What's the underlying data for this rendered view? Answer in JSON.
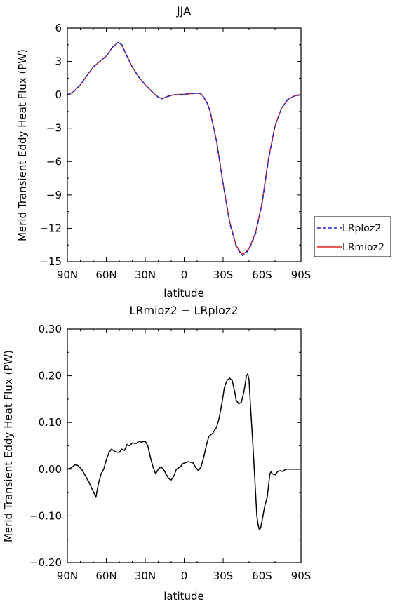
{
  "chart_data": [
    {
      "type": "line",
      "title": "JJA",
      "xlabel": "latitude",
      "ylabel": "Merid Transient Eddy Heat Flux (PW)",
      "xlim": [
        -90,
        90
      ],
      "ylim": [
        -15,
        6
      ],
      "x_direction": "90N on left to 90S on right",
      "xticks": [
        {
          "value": -90,
          "label": "90N"
        },
        {
          "value": -60,
          "label": "60N"
        },
        {
          "value": -30,
          "label": "30N"
        },
        {
          "value": 0,
          "label": "0"
        },
        {
          "value": 30,
          "label": "30S"
        },
        {
          "value": 60,
          "label": "60S"
        },
        {
          "value": 90,
          "label": "90S"
        }
      ],
      "yticks": [
        {
          "value": 6,
          "label": "6"
        },
        {
          "value": 3,
          "label": "3"
        },
        {
          "value": 0,
          "label": "0"
        },
        {
          "value": -3,
          "label": "−3"
        },
        {
          "value": -6,
          "label": "−6"
        },
        {
          "value": -9,
          "label": "−9"
        },
        {
          "value": -12,
          "label": "−12"
        },
        {
          "value": -15,
          "label": "−15"
        }
      ],
      "legend_placement": "right of plot, bottom",
      "series": [
        {
          "name": "LRploz2",
          "color": "#2222cc",
          "dash": "dashed",
          "points": [
            [
              -90,
              0
            ],
            [
              -85,
              0.3
            ],
            [
              -80,
              0.9
            ],
            [
              -75,
              1.7
            ],
            [
              -70,
              2.5
            ],
            [
              -65,
              3.0
            ],
            [
              -60,
              3.5
            ],
            [
              -55,
              4.3
            ],
            [
              -51,
              4.7
            ],
            [
              -48,
              4.5
            ],
            [
              -45,
              3.7
            ],
            [
              -40,
              2.5
            ],
            [
              -35,
              1.6
            ],
            [
              -30,
              0.9
            ],
            [
              -25,
              0.3
            ],
            [
              -20,
              -0.2
            ],
            [
              -17,
              -0.35
            ],
            [
              -13,
              -0.15
            ],
            [
              -8,
              0
            ],
            [
              0,
              0.05
            ],
            [
              5,
              0.1
            ],
            [
              10,
              0.15
            ],
            [
              13,
              0.1
            ],
            [
              15,
              -0.2
            ],
            [
              18,
              -0.8
            ],
            [
              20,
              -1.5
            ],
            [
              25,
              -4.2
            ],
            [
              30,
              -8.0
            ],
            [
              35,
              -11.5
            ],
            [
              40,
              -13.6
            ],
            [
              43,
              -14.2
            ],
            [
              45,
              -14.45
            ],
            [
              47,
              -14.3
            ],
            [
              50,
              -13.9
            ],
            [
              55,
              -12.5
            ],
            [
              60,
              -9.8
            ],
            [
              65,
              -5.8
            ],
            [
              70,
              -2.8
            ],
            [
              75,
              -1.2
            ],
            [
              80,
              -0.4
            ],
            [
              85,
              -0.1
            ],
            [
              90,
              0
            ]
          ]
        },
        {
          "name": "LRmioz2",
          "color": "#dd2222",
          "dash": "solid",
          "points": [
            [
              -90,
              0
            ],
            [
              -85,
              0.3
            ],
            [
              -80,
              0.9
            ],
            [
              -75,
              1.7
            ],
            [
              -70,
              2.5
            ],
            [
              -65,
              3.0
            ],
            [
              -60,
              3.5
            ],
            [
              -55,
              4.3
            ],
            [
              -51,
              4.7
            ],
            [
              -48,
              4.5
            ],
            [
              -45,
              3.7
            ],
            [
              -40,
              2.5
            ],
            [
              -35,
              1.6
            ],
            [
              -30,
              0.9
            ],
            [
              -25,
              0.3
            ],
            [
              -20,
              -0.2
            ],
            [
              -17,
              -0.35
            ],
            [
              -13,
              -0.15
            ],
            [
              -8,
              0
            ],
            [
              0,
              0.05
            ],
            [
              5,
              0.1
            ],
            [
              10,
              0.15
            ],
            [
              13,
              0.1
            ],
            [
              15,
              -0.2
            ],
            [
              18,
              -0.8
            ],
            [
              20,
              -1.5
            ],
            [
              25,
              -4.2
            ],
            [
              30,
              -8.0
            ],
            [
              35,
              -11.4
            ],
            [
              40,
              -13.5
            ],
            [
              43,
              -14.1
            ],
            [
              45,
              -14.3
            ],
            [
              47,
              -14.2
            ],
            [
              50,
              -13.8
            ],
            [
              55,
              -12.4
            ],
            [
              60,
              -9.7
            ],
            [
              65,
              -5.7
            ],
            [
              70,
              -2.8
            ],
            [
              75,
              -1.2
            ],
            [
              80,
              -0.4
            ],
            [
              85,
              -0.1
            ],
            [
              90,
              0
            ]
          ]
        }
      ]
    },
    {
      "type": "line",
      "title": "LRmioz2 − LRploz2",
      "xlabel": "latitude",
      "ylabel": "Merid Transient Eddy Heat Flux (PW)",
      "xlim": [
        -90,
        90
      ],
      "ylim": [
        -0.2,
        0.3
      ],
      "x_direction": "90N on left to 90S on right",
      "xticks": [
        {
          "value": -90,
          "label": "90N"
        },
        {
          "value": -60,
          "label": "60N"
        },
        {
          "value": -30,
          "label": "30N"
        },
        {
          "value": 0,
          "label": "0"
        },
        {
          "value": 30,
          "label": "30S"
        },
        {
          "value": 60,
          "label": "60S"
        },
        {
          "value": 90,
          "label": "90S"
        }
      ],
      "yticks": [
        {
          "value": 0.3,
          "label": "0.30"
        },
        {
          "value": 0.2,
          "label": "0.20"
        },
        {
          "value": 0.1,
          "label": "0.10"
        },
        {
          "value": 0.0,
          "label": "0.00"
        },
        {
          "value": -0.1,
          "label": "−0.10"
        },
        {
          "value": -0.2,
          "label": "−0.20"
        }
      ],
      "series": [
        {
          "color": "#000000",
          "dash": "solid",
          "points": [
            [
              -90,
              0
            ],
            [
              -87,
              0.003
            ],
            [
              -84,
              0.01
            ],
            [
              -82,
              0.008
            ],
            [
              -79,
              0
            ],
            [
              -76,
              -0.015
            ],
            [
              -73,
              -0.03
            ],
            [
              -70,
              -0.048
            ],
            [
              -68,
              -0.06
            ],
            [
              -66,
              -0.03
            ],
            [
              -64,
              -0.01
            ],
            [
              -62,
              0
            ],
            [
              -60,
              0.02
            ],
            [
              -58,
              0.035
            ],
            [
              -56,
              0.043
            ],
            [
              -53,
              0.037
            ],
            [
              -50,
              0.036
            ],
            [
              -48,
              0.043
            ],
            [
              -46,
              0.04
            ],
            [
              -44,
              0.053
            ],
            [
              -42,
              0.05
            ],
            [
              -40,
              0.056
            ],
            [
              -37,
              0.055
            ],
            [
              -35,
              0.06
            ],
            [
              -33,
              0.058
            ],
            [
              -30,
              0.06
            ],
            [
              -28,
              0.05
            ],
            [
              -26,
              0.025
            ],
            [
              -24,
              0.005
            ],
            [
              -22,
              -0.01
            ],
            [
              -20,
              0
            ],
            [
              -18,
              0.005
            ],
            [
              -16,
              0
            ],
            [
              -14,
              -0.01
            ],
            [
              -12,
              -0.02
            ],
            [
              -10,
              -0.023
            ],
            [
              -8,
              -0.015
            ],
            [
              -6,
              0
            ],
            [
              -3,
              0.005
            ],
            [
              -1,
              0.012
            ],
            [
              1,
              0.014
            ],
            [
              3,
              0.016
            ],
            [
              5,
              0.015
            ],
            [
              7,
              0.013
            ],
            [
              9,
              0.003
            ],
            [
              11,
              -0.003
            ],
            [
              13,
              0.005
            ],
            [
              15,
              0.025
            ],
            [
              17,
              0.05
            ],
            [
              19,
              0.07
            ],
            [
              22,
              0.077
            ],
            [
              25,
              0.09
            ],
            [
              27,
              0.11
            ],
            [
              29,
              0.14
            ],
            [
              31,
              0.175
            ],
            [
              33,
              0.19
            ],
            [
              35,
              0.195
            ],
            [
              37,
              0.19
            ],
            [
              39,
              0.165
            ],
            [
              40,
              0.148
            ],
            [
              42,
              0.14
            ],
            [
              44,
              0.143
            ],
            [
              46,
              0.165
            ],
            [
              48,
              0.2
            ],
            [
              49,
              0.204
            ],
            [
              50,
              0.19
            ],
            [
              51,
              0.14
            ],
            [
              53,
              0.05
            ],
            [
              55,
              -0.05
            ],
            [
              56,
              -0.1
            ],
            [
              57,
              -0.12
            ],
            [
              58,
              -0.13
            ],
            [
              59,
              -0.125
            ],
            [
              60,
              -0.11
            ],
            [
              62,
              -0.08
            ],
            [
              64,
              -0.06
            ],
            [
              65,
              -0.035
            ],
            [
              66,
              -0.01
            ],
            [
              67,
              -0.005
            ],
            [
              68,
              -0.01
            ],
            [
              70,
              -0.012
            ],
            [
              72,
              -0.005
            ],
            [
              74,
              -0.003
            ],
            [
              76,
              -0.005
            ],
            [
              78,
              0
            ],
            [
              82,
              0
            ],
            [
              86,
              0
            ],
            [
              90,
              0
            ]
          ]
        }
      ]
    }
  ]
}
